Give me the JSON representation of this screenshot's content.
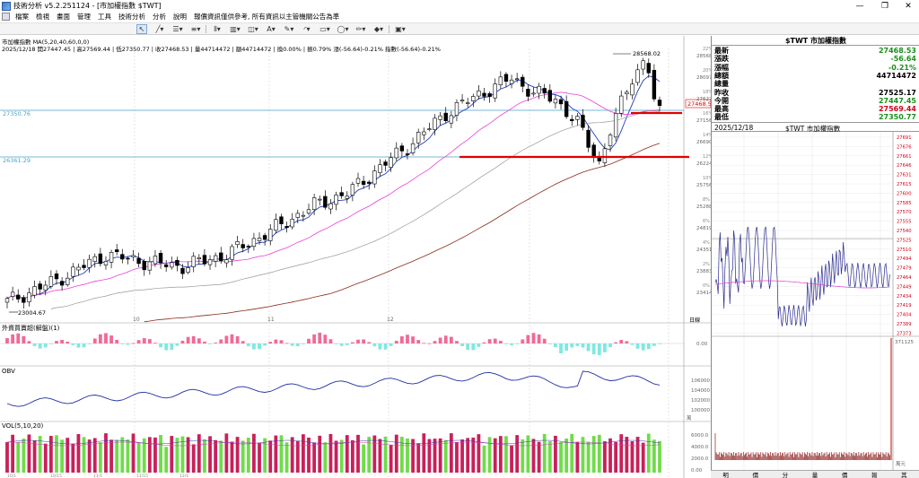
{
  "window": {
    "title": "技術分析 v5.2.251124 - [市加權指數 $TWT]",
    "minimize": "—",
    "restore": "❐",
    "close": "✕"
  },
  "menu": [
    "檔案",
    "檢視",
    "畫面",
    "管理",
    "工具",
    "技術分析",
    "分析",
    "說明",
    "報價資訊僅供參考, 所有資訊以主管機關公告為準"
  ],
  "main_chart": {
    "legend": "市加權指數 MA(5,20,40,60,0,0)",
    "info": "2025/12/18 開27447.45 | 高27569.44 | 低27350.77 | 收27468.53 | 量44714472 | 額44714472 | 換0.00% | 振0.79% 漲(-56.64)-0.21% 指數(-56.64)-0.21%",
    "hline_labels": [
      "27350.76",
      "26361.29"
    ],
    "peak_label": "28568.02",
    "low_label": "23004.67",
    "price_tag": "27468.5",
    "axis_ticks": [
      "28568",
      "28097",
      "27627",
      "27156",
      "26690",
      "26224",
      "25756",
      "25288",
      "24819",
      "24351",
      "23883",
      "23414"
    ],
    "axis_pct": [
      "22%",
      "20%",
      "18%",
      "16%",
      "14%",
      "12%",
      "10%",
      "8%",
      "6%",
      "4%",
      "2%",
      "0%"
    ],
    "month_labels": [
      "10",
      "11",
      "12"
    ],
    "corner_label": "日線",
    "colors": {
      "up": "#ffffff",
      "down": "#000000",
      "ma5": "#1f3fbf",
      "ma20": "#e83fd6",
      "ma40": "#999999",
      "ma60": "#8b2a1a",
      "red": "#e00000",
      "hline": "#4aa3c8"
    }
  },
  "foreign": {
    "title": "外資買賣超(解盤)(1)",
    "axis": "0.00"
  },
  "obv": {
    "title": "OBV",
    "axis": [
      "106000",
      "104000",
      "102000",
      "100000"
    ],
    "unit": "萬"
  },
  "vol": {
    "title": "VOL(5,10,20)",
    "axis": [
      "6000.0",
      "4000.0",
      "2000.0",
      "0.00"
    ],
    "dates": [
      "10/1",
      "10/15",
      "11/1",
      "11/15",
      "12/1"
    ]
  },
  "quote": {
    "title": "$TWT 市加權指數",
    "rows": [
      {
        "k": "最新",
        "v": "27468.53",
        "c": "dn"
      },
      {
        "k": "漲跌",
        "v": "-56.64",
        "c": "dn"
      },
      {
        "k": "漲幅",
        "v": "-0.21%",
        "c": "dn"
      },
      {
        "k": "總額",
        "v": "44714472",
        "c": ""
      },
      {
        "k": "總量",
        "v": "",
        "c": ""
      },
      {
        "k": "昨收",
        "v": "27525.17",
        "c": ""
      },
      {
        "k": "今開",
        "v": "27447.45",
        "c": "dn"
      },
      {
        "k": "最高",
        "v": "27569.44",
        "c": "up"
      },
      {
        "k": "最低",
        "v": "27350.77",
        "c": "dn"
      }
    ]
  },
  "tick": {
    "date": "2025/12/18",
    "title": "$TWT 市加權指數",
    "axis": [
      "27691",
      "27676",
      "27661",
      "27646",
      "27631",
      "27615",
      "27600",
      "27585",
      "27570",
      "27555",
      "27540",
      "27525",
      "27510",
      "27494",
      "27479",
      "27464",
      "27449",
      "27434",
      "27419",
      "27404",
      "27389",
      "27373"
    ],
    "vol_axis": "371125",
    "vol_unit": "萬元",
    "tabs": [
      "明",
      "價",
      "分",
      "量",
      "價",
      "報",
      "其"
    ]
  }
}
